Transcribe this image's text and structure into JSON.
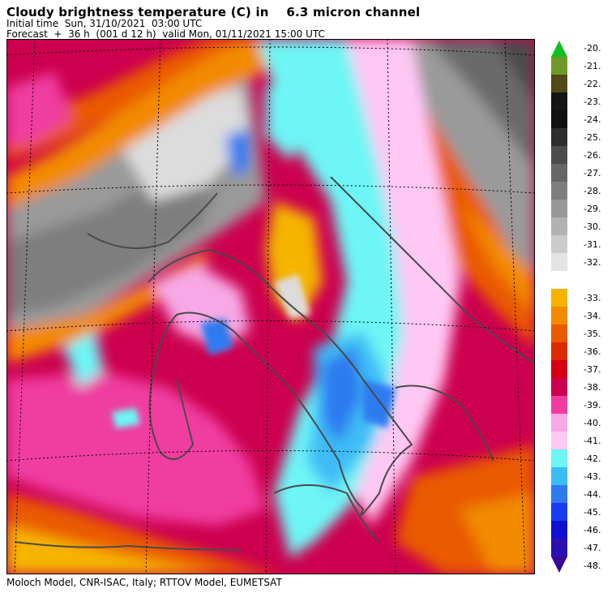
{
  "header": {
    "title": "Cloudy brightness temperature (C) in    6.3 micron channel",
    "initial_time": "Initial time  Sun, 31/10/2021  03:00 UTC",
    "forecast": "Forecast  +  36 h  (001 d 12 h)  valid Mon, 01/11/2021 15:00 UTC"
  },
  "footer": {
    "credit": "Moloch Model, CNR-ISAC, Italy; RTTOV Model, EUMETSAT"
  },
  "legend": {
    "upper": [
      {
        "label": "-20.",
        "color": "#11c020"
      },
      {
        "label": "-21.",
        "color": "#6e9a28"
      },
      {
        "label": "-22.",
        "color": "#4f4a18"
      },
      {
        "label": "-23.",
        "color": "#151515"
      },
      {
        "label": "-24.",
        "color": "#111111"
      },
      {
        "label": "-25.",
        "color": "#2e2e2e"
      },
      {
        "label": "-26.",
        "color": "#4c4c4c"
      },
      {
        "label": "-27.",
        "color": "#666666"
      },
      {
        "label": "-28.",
        "color": "#7e7e7e"
      },
      {
        "label": "-29.",
        "color": "#979797"
      },
      {
        "label": "-30.",
        "color": "#b2b2b2"
      },
      {
        "label": "-31.",
        "color": "#cbcbcb"
      },
      {
        "label": "-32.",
        "color": "#e4e4e4"
      }
    ],
    "lower": [
      {
        "label": "-33.",
        "color": "#f5b400"
      },
      {
        "label": "-34.",
        "color": "#f28a00"
      },
      {
        "label": "-35.",
        "color": "#ea5a00"
      },
      {
        "label": "-36.",
        "color": "#e02a00"
      },
      {
        "label": "-37.",
        "color": "#d60014"
      },
      {
        "label": "-38.",
        "color": "#cc004e"
      },
      {
        "label": "-39.",
        "color": "#f03ca0"
      },
      {
        "label": "-40.",
        "color": "#f7a8e6"
      },
      {
        "label": "-41.",
        "color": "#ffc8f4"
      },
      {
        "label": "-42.",
        "color": "#6ef5f5"
      },
      {
        "label": "-43.",
        "color": "#3cbcf5"
      },
      {
        "label": "-44.",
        "color": "#2e7af0"
      },
      {
        "label": "-45.",
        "color": "#1a3cf0"
      },
      {
        "label": "-46.",
        "color": "#1010d0"
      },
      {
        "label": "-47.",
        "color": "#2a10b0"
      },
      {
        "label": "-48.",
        "color": "#3c0896"
      }
    ]
  }
}
